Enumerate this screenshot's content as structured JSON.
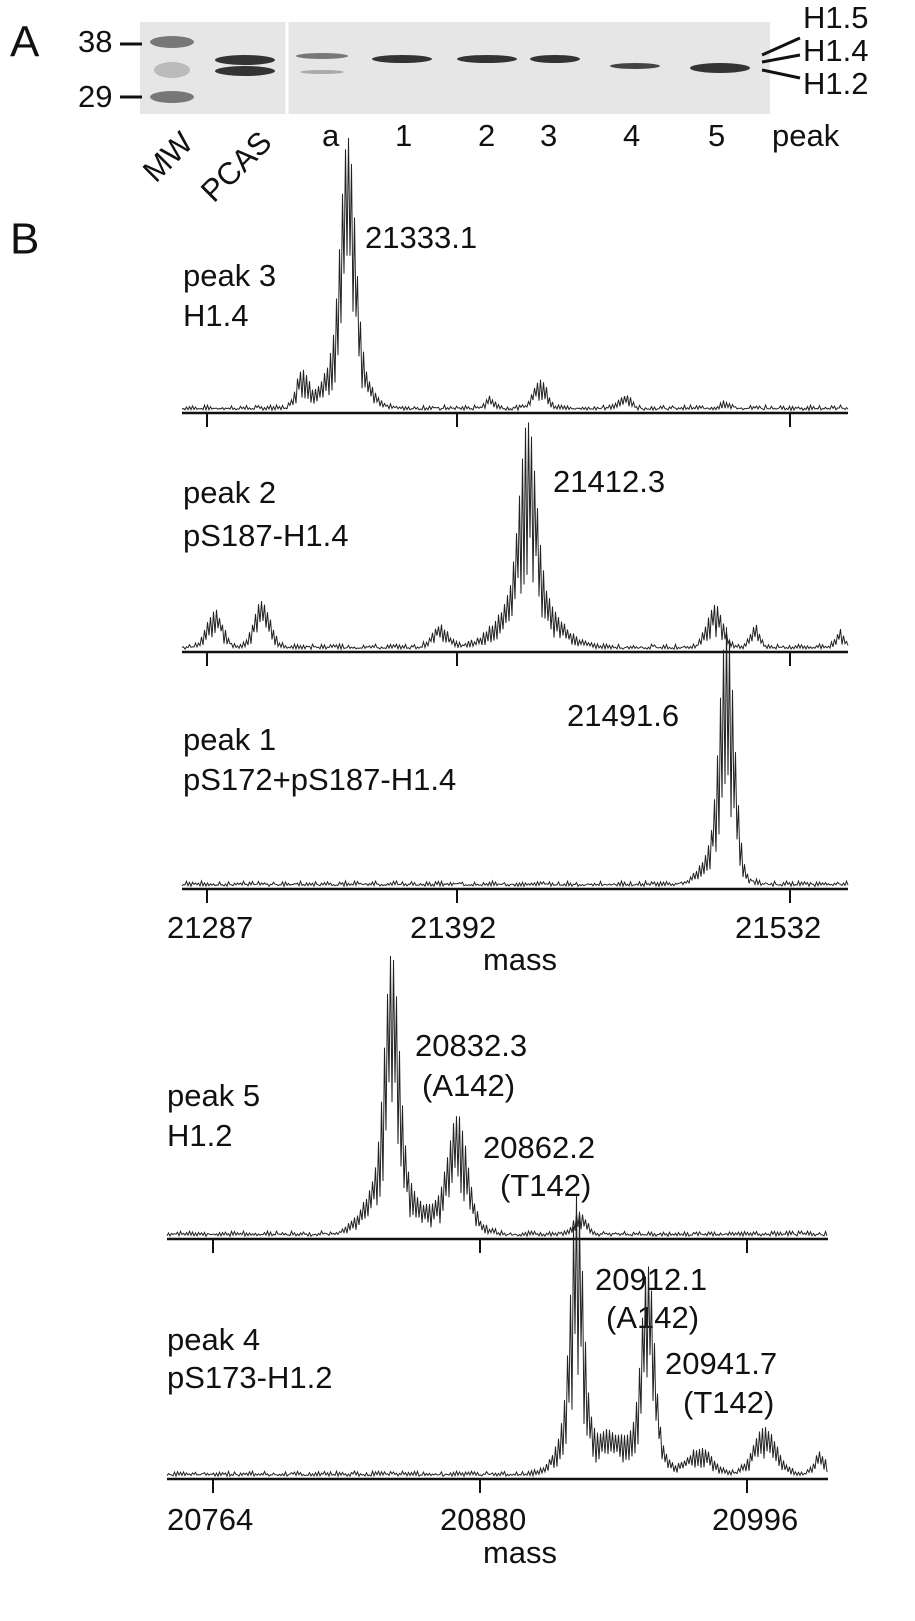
{
  "panel_a": {
    "label": "A",
    "mw_markers": [
      "38",
      "29"
    ],
    "lanes": [
      "MW",
      "PCAS",
      "a",
      "1",
      "2",
      "3",
      "4",
      "5",
      "peak"
    ],
    "bands": [
      "H1.5",
      "H1.4",
      "H1.2"
    ]
  },
  "panel_b": {
    "label": "B",
    "upper": {
      "spectra": [
        {
          "sample": "peak 3",
          "form": "H1.4",
          "peaks": [
            "21333.1"
          ]
        },
        {
          "sample": "peak 2",
          "form": "pS187-H1.4",
          "peaks": [
            "21412.3"
          ]
        },
        {
          "sample": "peak 1",
          "form": "pS172+pS187-H1.4",
          "peaks": [
            "21491.6"
          ]
        }
      ],
      "xticks": [
        "21287",
        "21392",
        "21532"
      ],
      "xlabel": "mass"
    },
    "lower": {
      "spectra": [
        {
          "sample": "peak 5",
          "form": "H1.2",
          "peaks": [
            "20832.3",
            "(A142)",
            "20862.2",
            "(T142)"
          ]
        },
        {
          "sample": "peak 4",
          "form": "pS173-H1.2",
          "peaks": [
            "20912.1",
            "(A142)",
            "20941.7",
            "(T142)"
          ]
        }
      ],
      "xticks": [
        "20764",
        "20880",
        "20996"
      ],
      "xlabel": "mass"
    }
  }
}
